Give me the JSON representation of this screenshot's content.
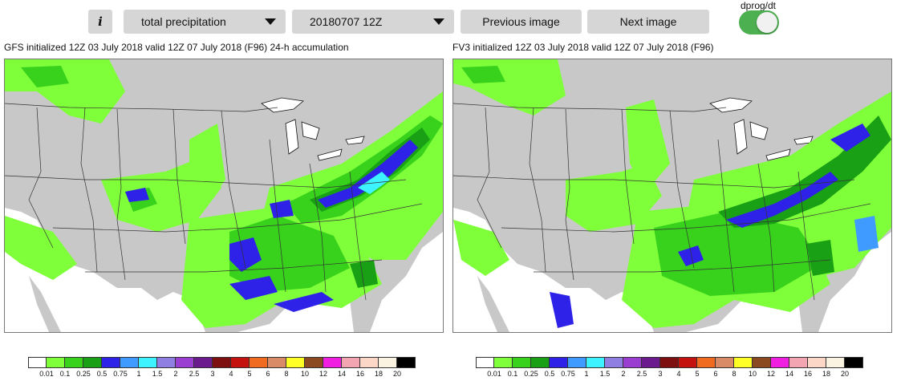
{
  "toolbar": {
    "info_label": "i",
    "variable_select": "total precipitation",
    "time_select": "20180707 12Z",
    "prev_label": "Previous image",
    "next_label": "Next image",
    "toggle_label": "dprog/dt",
    "toggle_on": true
  },
  "maps": [
    {
      "title": "GFS initialized 12Z 03 July 2018 valid 12Z 07 July 2018 (F96) 24-h accumulation"
    },
    {
      "title": "FV3 initialized 12Z 03 July 2018 valid 12Z 07 July 2018 (F96)"
    }
  ],
  "colorbar": {
    "colors": [
      "#ffffff",
      "#7fff3a",
      "#38d21c",
      "#1aa015",
      "#2e22e8",
      "#3f9bff",
      "#3cf3ff",
      "#8f7fe3",
      "#9a3ed2",
      "#6c1b8f",
      "#7d0f10",
      "#c4130e",
      "#f06a1f",
      "#d98a66",
      "#ffff26",
      "#8b4a1f",
      "#f01ee0",
      "#f3a6b2",
      "#fcd7c7",
      "#fbf3e2",
      "#000000"
    ],
    "ticks": [
      "0.01",
      "0.1",
      "0.25",
      "0.5",
      "0.75",
      "1",
      "1.5",
      "2",
      "2.5",
      "3",
      "4",
      "5",
      "6",
      "8",
      "10",
      "12",
      "14",
      "16",
      "18",
      "20"
    ]
  },
  "colors": {
    "land": "#c8c8c8",
    "water": "#ffffff",
    "light_green": "#7fff3a",
    "mid_green": "#38d21c",
    "dark_green": "#1aa015",
    "blue": "#2e22e8",
    "cyan": "#3cf3ff"
  }
}
